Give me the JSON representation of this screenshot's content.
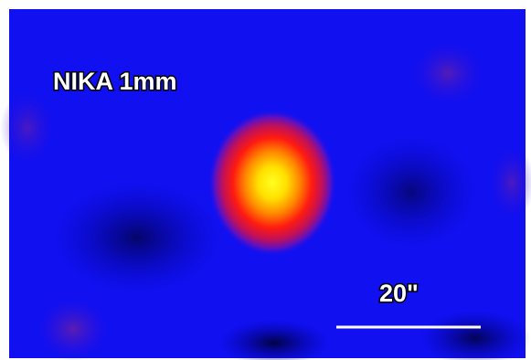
{
  "image": {
    "label": "NIKA 1mm",
    "scale_bar_label": "20\""
  }
}
